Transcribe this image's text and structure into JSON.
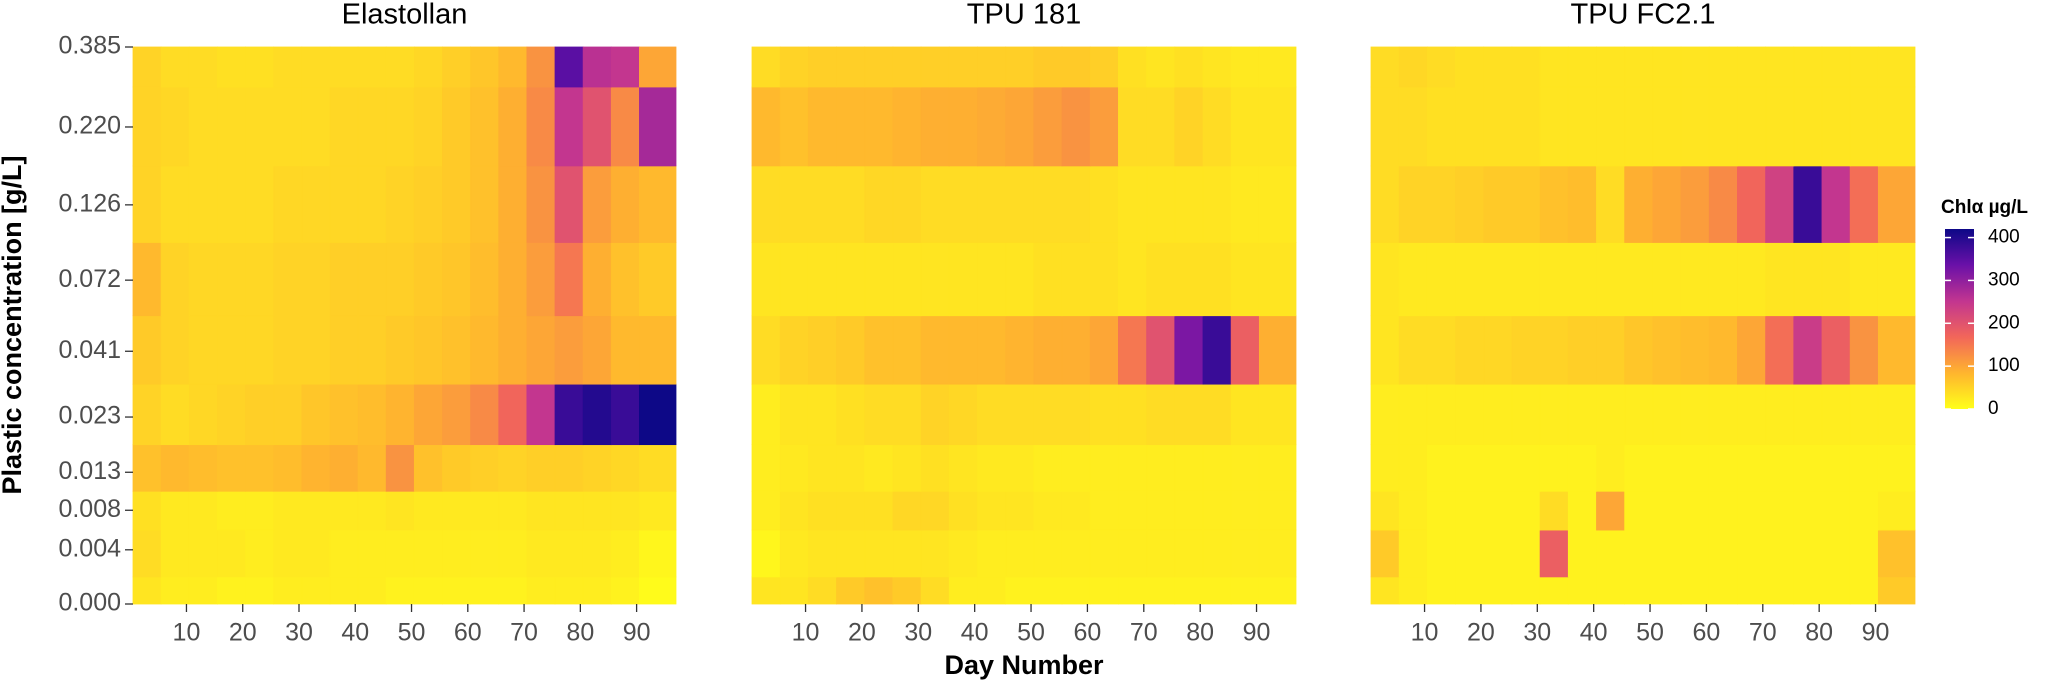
{
  "chart_data": [
    {
      "type": "heatmap",
      "title": "Elastollan",
      "y_label": "Plastic concentration [g/L]",
      "x": [
        3,
        8,
        13,
        18,
        23,
        28,
        33,
        38,
        43,
        48,
        53,
        58,
        63,
        68,
        73,
        78,
        83,
        88,
        93
      ],
      "y": [
        0,
        0.004,
        0.008,
        0.013,
        0.023,
        0.041,
        0.072,
        0.126,
        0.22,
        0.385
      ],
      "xlim": [
        0.5,
        97
      ],
      "ylim": [
        0,
        0.385
      ],
      "xticks": [
        10,
        20,
        30,
        40,
        50,
        60,
        70,
        80,
        90
      ],
      "yticks": [
        {
          "value": 0,
          "label": "0.000"
        },
        {
          "value": 0.004,
          "label": "0.004"
        },
        {
          "value": 0.008,
          "label": "0.008"
        },
        {
          "value": 0.013,
          "label": "0.013"
        },
        {
          "value": 0.023,
          "label": "0.023"
        },
        {
          "value": 0.041,
          "label": "0.041"
        },
        {
          "value": 0.072,
          "label": "0.072"
        },
        {
          "value": 0.126,
          "label": "0.126"
        },
        {
          "value": 0.22,
          "label": "0.220"
        },
        {
          "value": 0.385,
          "label": "0.385"
        }
      ],
      "z": [
        [
          30,
          20,
          20,
          15,
          15,
          20,
          20,
          20,
          20,
          15,
          15,
          15,
          15,
          15,
          20,
          20,
          20,
          15,
          5
        ],
        [
          40,
          25,
          25,
          25,
          20,
          25,
          25,
          20,
          20,
          20,
          20,
          20,
          20,
          20,
          25,
          25,
          25,
          20,
          10
        ],
        [
          35,
          25,
          25,
          20,
          20,
          25,
          25,
          25,
          25,
          30,
          25,
          25,
          25,
          25,
          30,
          30,
          30,
          30,
          25
        ],
        [
          70,
          80,
          75,
          70,
          70,
          75,
          85,
          90,
          80,
          120,
          70,
          60,
          55,
          50,
          55,
          55,
          50,
          45,
          40
        ],
        [
          50,
          40,
          45,
          50,
          55,
          55,
          65,
          70,
          75,
          85,
          100,
          110,
          130,
          170,
          250,
          380,
          400,
          380,
          420
        ],
        [
          60,
          50,
          45,
          45,
          45,
          50,
          50,
          55,
          55,
          60,
          65,
          70,
          80,
          90,
          100,
          110,
          100,
          80,
          80
        ],
        [
          80,
          50,
          45,
          45,
          45,
          50,
          50,
          55,
          55,
          55,
          60,
          65,
          75,
          90,
          110,
          150,
          90,
          70,
          60
        ],
        [
          50,
          40,
          40,
          40,
          40,
          45,
          45,
          45,
          45,
          50,
          55,
          60,
          70,
          90,
          120,
          200,
          110,
          90,
          80
        ],
        [
          50,
          45,
          40,
          40,
          40,
          40,
          40,
          45,
          45,
          45,
          50,
          60,
          70,
          90,
          130,
          250,
          200,
          130,
          280
        ],
        [
          50,
          40,
          40,
          35,
          35,
          40,
          40,
          40,
          40,
          40,
          45,
          55,
          65,
          80,
          120,
          350,
          260,
          250,
          100
        ]
      ]
    },
    {
      "type": "heatmap",
      "title": "TPU 181",
      "x_label": "Day Number",
      "x": [
        3,
        8,
        13,
        18,
        23,
        28,
        33,
        38,
        43,
        48,
        53,
        58,
        63,
        68,
        73,
        78,
        83,
        88,
        93
      ],
      "y": [
        0,
        0.004,
        0.008,
        0.013,
        0.023,
        0.041,
        0.072,
        0.126,
        0.22,
        0.385
      ],
      "xlim": [
        0.5,
        97
      ],
      "ylim": [
        0,
        0.385
      ],
      "xticks": [
        10,
        20,
        30,
        40,
        50,
        60,
        70,
        80,
        90
      ],
      "z": [
        [
          30,
          30,
          40,
          60,
          70,
          60,
          40,
          20,
          20,
          15,
          15,
          15,
          15,
          15,
          15,
          15,
          15,
          15,
          15
        ],
        [
          10,
          25,
          30,
          30,
          30,
          30,
          30,
          25,
          20,
          20,
          20,
          20,
          20,
          20,
          20,
          20,
          20,
          20,
          20
        ],
        [
          20,
          30,
          35,
          35,
          35,
          45,
          45,
          35,
          30,
          30,
          25,
          25,
          20,
          20,
          20,
          20,
          20,
          20,
          20
        ],
        [
          20,
          25,
          30,
          30,
          25,
          30,
          35,
          30,
          25,
          25,
          20,
          20,
          20,
          20,
          20,
          20,
          20,
          20,
          20
        ],
        [
          20,
          30,
          30,
          35,
          40,
          40,
          50,
          45,
          40,
          40,
          40,
          40,
          35,
          35,
          40,
          40,
          40,
          30,
          30
        ],
        [
          40,
          50,
          55,
          60,
          70,
          70,
          80,
          80,
          80,
          85,
          90,
          90,
          100,
          150,
          200,
          320,
          380,
          180,
          90
        ],
        [
          30,
          30,
          30,
          30,
          30,
          30,
          30,
          30,
          30,
          30,
          35,
          35,
          35,
          30,
          35,
          35,
          35,
          30,
          30
        ],
        [
          40,
          40,
          40,
          40,
          45,
          45,
          40,
          40,
          40,
          40,
          40,
          40,
          35,
          30,
          30,
          30,
          30,
          25,
          25
        ],
        [
          80,
          70,
          80,
          80,
          80,
          85,
          90,
          90,
          95,
          100,
          110,
          120,
          110,
          40,
          40,
          50,
          40,
          30,
          30
        ],
        [
          40,
          50,
          55,
          55,
          55,
          55,
          55,
          55,
          55,
          55,
          60,
          60,
          55,
          35,
          30,
          35,
          30,
          25,
          25
        ]
      ]
    },
    {
      "type": "heatmap",
      "title": "TPU FC2.1",
      "x": [
        3,
        8,
        13,
        18,
        23,
        28,
        33,
        38,
        43,
        48,
        53,
        58,
        63,
        68,
        73,
        78,
        83,
        88,
        93
      ],
      "y": [
        0,
        0.004,
        0.008,
        0.013,
        0.023,
        0.041,
        0.072,
        0.126,
        0.22,
        0.385
      ],
      "xlim": [
        0.5,
        97
      ],
      "ylim": [
        0,
        0.385
      ],
      "xticks": [
        10,
        20,
        30,
        40,
        50,
        60,
        70,
        80,
        90
      ],
      "z": [
        [
          30,
          20,
          15,
          15,
          15,
          15,
          15,
          15,
          15,
          15,
          15,
          15,
          15,
          15,
          15,
          15,
          15,
          15,
          60
        ],
        [
          60,
          20,
          15,
          15,
          15,
          15,
          180,
          15,
          15,
          15,
          15,
          15,
          15,
          15,
          15,
          15,
          15,
          15,
          70
        ],
        [
          30,
          20,
          15,
          15,
          15,
          15,
          40,
          15,
          100,
          15,
          15,
          15,
          15,
          15,
          15,
          15,
          15,
          15,
          20
        ],
        [
          20,
          20,
          15,
          15,
          15,
          15,
          15,
          15,
          20,
          15,
          15,
          15,
          15,
          15,
          15,
          15,
          15,
          15,
          15
        ],
        [
          20,
          20,
          20,
          20,
          20,
          20,
          20,
          20,
          20,
          20,
          20,
          20,
          20,
          20,
          20,
          20,
          20,
          20,
          20
        ],
        [
          30,
          40,
          40,
          45,
          45,
          50,
          50,
          55,
          55,
          65,
          70,
          75,
          80,
          100,
          160,
          240,
          180,
          120,
          80
        ],
        [
          30,
          25,
          25,
          25,
          25,
          25,
          25,
          25,
          25,
          25,
          25,
          25,
          25,
          25,
          30,
          30,
          30,
          25,
          25
        ],
        [
          40,
          50,
          50,
          55,
          60,
          60,
          70,
          75,
          40,
          90,
          100,
          110,
          130,
          170,
          230,
          380,
          250,
          160,
          100
        ],
        [
          40,
          40,
          35,
          35,
          35,
          35,
          30,
          30,
          30,
          30,
          30,
          30,
          30,
          30,
          30,
          30,
          30,
          30,
          30
        ],
        [
          40,
          45,
          40,
          35,
          35,
          35,
          30,
          30,
          30,
          30,
          30,
          30,
          30,
          30,
          30,
          30,
          30,
          30,
          30
        ]
      ],
      "colorbar": {
        "title": "Chlα µg/L",
        "lim": [
          0,
          420
        ],
        "ticks": [
          0,
          100,
          200,
          300,
          400
        ],
        "colors": [
          "#ffff1a",
          "#ffb52e",
          "#f2665a",
          "#c23590",
          "#6a10a8",
          "#0d0887"
        ]
      }
    }
  ]
}
